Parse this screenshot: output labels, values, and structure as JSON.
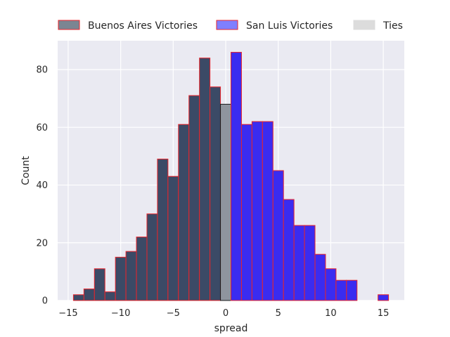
{
  "chart_data": {
    "type": "bar",
    "xlabel": "spread",
    "ylabel": "Count",
    "xlim": [
      -16.0,
      17.0
    ],
    "ylim": [
      0,
      90
    ],
    "xticks": [
      -15,
      -10,
      -5,
      0,
      5,
      10,
      15
    ],
    "xtick_labels": [
      "−15",
      "−10",
      "−5",
      "0",
      "5",
      "10",
      "15"
    ],
    "yticks": [
      0,
      20,
      40,
      60,
      80
    ],
    "ytick_labels": [
      "0",
      "20",
      "40",
      "60",
      "80"
    ],
    "grid": true,
    "bin_width": 1,
    "legend": {
      "placement": "top",
      "entries": [
        {
          "label": "Buenos Aires Victories",
          "fill": "#7b8592",
          "edge": "#e8242b"
        },
        {
          "label": "San Luis Victories",
          "fill": "#7f7fff",
          "edge": "#e8242b"
        },
        {
          "label": "Ties",
          "fill": "#dcdcdc",
          "edge": "#dcdcdc"
        }
      ]
    },
    "series": [
      {
        "name": "Buenos Aires Victories",
        "fill": "#3b4a66",
        "edge": "#e8242b",
        "x": [
          -14,
          -13,
          -12,
          -11,
          -10,
          -9,
          -8,
          -7,
          -6,
          -5,
          -4,
          -3,
          -2,
          -1
        ],
        "values": [
          2,
          4,
          11,
          3,
          15,
          17,
          22,
          30,
          49,
          43,
          61,
          71,
          84,
          74
        ]
      },
      {
        "name": "Ties",
        "fill": "#8f959e",
        "edge": "#1a1a1a",
        "x": [
          0
        ],
        "values": [
          68
        ]
      },
      {
        "name": "San Luis Victories",
        "fill": "#3a2cf0",
        "edge": "#e8242b",
        "x": [
          1,
          2,
          3,
          4,
          5,
          6,
          7,
          8,
          9,
          10,
          11,
          12,
          13,
          14,
          15
        ],
        "values": [
          86,
          61,
          62,
          62,
          45,
          35,
          26,
          26,
          16,
          11,
          7,
          7,
          0,
          0,
          2
        ]
      }
    ]
  }
}
